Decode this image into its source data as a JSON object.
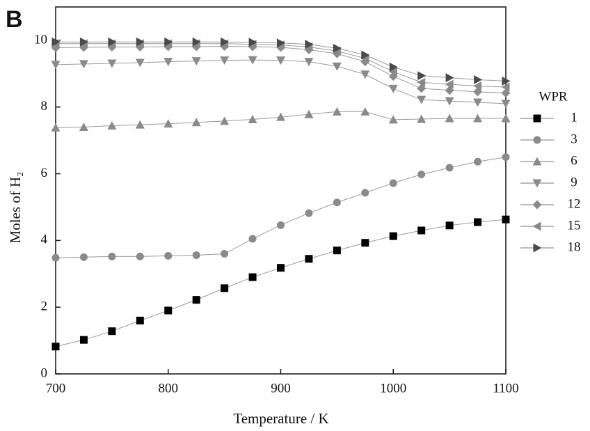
{
  "chart_data": {
    "type": "line",
    "panel_label": "B",
    "x_label": "Temperature / K",
    "y_label": "Moles of H₂",
    "legend_title": "WPR",
    "x": [
      700,
      725,
      750,
      775,
      800,
      825,
      850,
      875,
      900,
      925,
      950,
      975,
      1000,
      1025,
      1050,
      1075,
      1100
    ],
    "xlim": [
      700,
      1100
    ],
    "xticks": [
      700,
      800,
      900,
      1000,
      1100
    ],
    "ylim": [
      0,
      11
    ],
    "yticks": [
      0,
      2,
      4,
      6,
      8,
      10
    ],
    "series": [
      {
        "name": "1",
        "color": "#000000",
        "marker": "square",
        "values": [
          0.82,
          1.02,
          1.28,
          1.6,
          1.9,
          2.22,
          2.57,
          2.9,
          3.18,
          3.45,
          3.7,
          3.93,
          4.13,
          4.3,
          4.45,
          4.55,
          4.63
        ]
      },
      {
        "name": "3",
        "color": "#8a8a8a",
        "marker": "circle",
        "values": [
          3.48,
          3.5,
          3.52,
          3.52,
          3.54,
          3.56,
          3.6,
          4.05,
          4.46,
          4.82,
          5.14,
          5.43,
          5.72,
          5.98,
          6.18,
          6.36,
          6.5
        ]
      },
      {
        "name": "6",
        "color": "#8a8a8a",
        "marker": "triangle-up",
        "values": [
          7.38,
          7.4,
          7.44,
          7.47,
          7.5,
          7.54,
          7.58,
          7.63,
          7.7,
          7.78,
          7.86,
          7.86,
          7.62,
          7.64,
          7.66,
          7.66,
          7.66
        ]
      },
      {
        "name": "9",
        "color": "#8a8a8a",
        "marker": "triangle-down",
        "values": [
          9.27,
          9.29,
          9.31,
          9.33,
          9.36,
          9.38,
          9.4,
          9.41,
          9.4,
          9.36,
          9.22,
          8.98,
          8.55,
          8.22,
          8.18,
          8.14,
          8.1
        ]
      },
      {
        "name": "12",
        "color": "#8a8a8a",
        "marker": "diamond",
        "values": [
          9.78,
          9.79,
          9.8,
          9.8,
          9.81,
          9.81,
          9.82,
          9.81,
          9.79,
          9.72,
          9.6,
          9.36,
          8.92,
          8.56,
          8.5,
          8.46,
          8.42
        ]
      },
      {
        "name": "15",
        "color": "#8a8a8a",
        "marker": "triangle-left",
        "values": [
          9.9,
          9.9,
          9.9,
          9.9,
          9.9,
          9.9,
          9.9,
          9.88,
          9.86,
          9.8,
          9.68,
          9.46,
          9.06,
          8.74,
          8.68,
          8.63,
          8.6
        ]
      },
      {
        "name": "18",
        "color": "#4a4a4a",
        "marker": "triangle-right",
        "values": [
          9.95,
          9.95,
          9.95,
          9.95,
          9.95,
          9.95,
          9.95,
          9.94,
          9.92,
          9.88,
          9.76,
          9.56,
          9.2,
          8.94,
          8.88,
          8.82,
          8.78
        ]
      }
    ]
  }
}
